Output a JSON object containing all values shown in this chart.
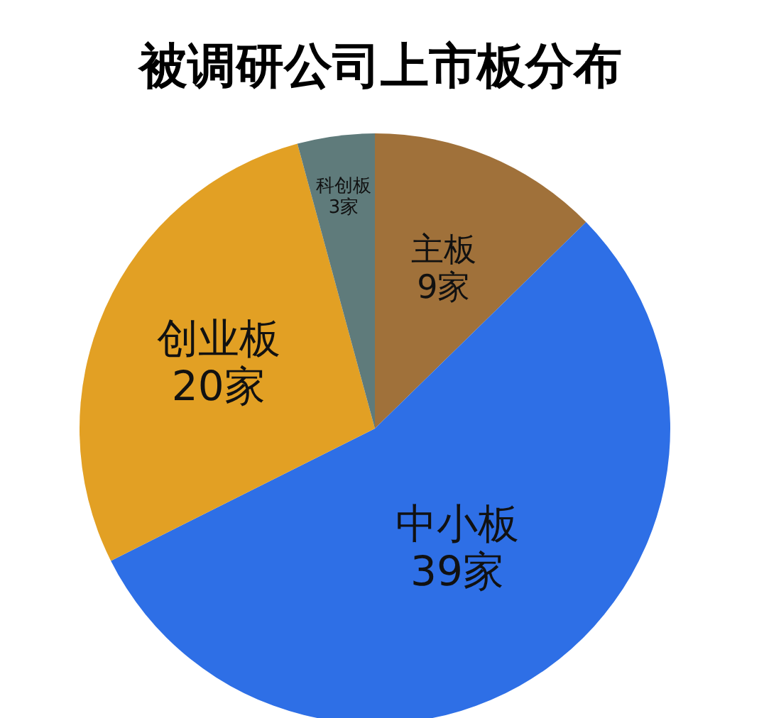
{
  "chart_data": {
    "type": "pie",
    "title": "被调研公司上市板分布",
    "categories": [
      "主板",
      "中小板",
      "创业板",
      "科创板"
    ],
    "values": [
      9,
      39,
      20,
      3
    ],
    "value_labels": [
      "9家",
      "39家",
      "20家",
      "3家"
    ],
    "colors": [
      "#a0713a",
      "#2e6fe6",
      "#e2a024",
      "#5f7b7b"
    ]
  }
}
